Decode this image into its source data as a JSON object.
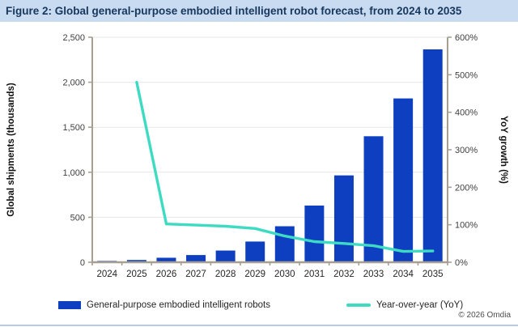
{
  "header": {
    "title": "Figure 2: Global general-purpose embodied intelligent robot forecast, from 2024 to 2035"
  },
  "chart_data": {
    "type": "combo-bar-line",
    "categories": [
      "2024",
      "2025",
      "2026",
      "2027",
      "2028",
      "2029",
      "2030",
      "2031",
      "2032",
      "2033",
      "2034",
      "2035"
    ],
    "series": [
      {
        "name": "General-purpose embodied intelligent robots",
        "type": "bar",
        "axis": "left",
        "color": "#0d3fc0",
        "values": [
          15,
          25,
          50,
          80,
          130,
          230,
          400,
          630,
          965,
          1400,
          1820,
          2365
        ]
      },
      {
        "name": "Year-over-year (YoY)",
        "type": "line",
        "axis": "right",
        "color": "#3ddcc2",
        "x_start_index": 1,
        "values": [
          480,
          102,
          99,
          96,
          90,
          70,
          55,
          50,
          44,
          29,
          30
        ]
      }
    ],
    "left_axis": {
      "label": "Global shipments (thousands)",
      "min": 0,
      "max": 2500,
      "tick_step": 500,
      "tick_labels": [
        "0",
        "500",
        "1,000",
        "1,500",
        "2,000",
        "2,500"
      ]
    },
    "right_axis": {
      "label": "YoY growth (%)",
      "min": 0,
      "max": 600,
      "tick_step": 100,
      "tick_labels": [
        "0%",
        "100%",
        "200%",
        "300%",
        "400%",
        "500%",
        "600%"
      ]
    },
    "grid": "horizontal",
    "legend_position": "bottom"
  },
  "footer": {
    "copyright": "© 2026 Omdia"
  },
  "colors": {
    "title_background": "#c9dbf1",
    "title_text": "#17375d",
    "axis_line": "#a79f92",
    "gridline": "#e7e7e7",
    "tick_text": "#3f3f3f",
    "bar": "#0d3fc0",
    "line": "#3ddcc2",
    "bottom_strip": "#b7cbe6"
  }
}
